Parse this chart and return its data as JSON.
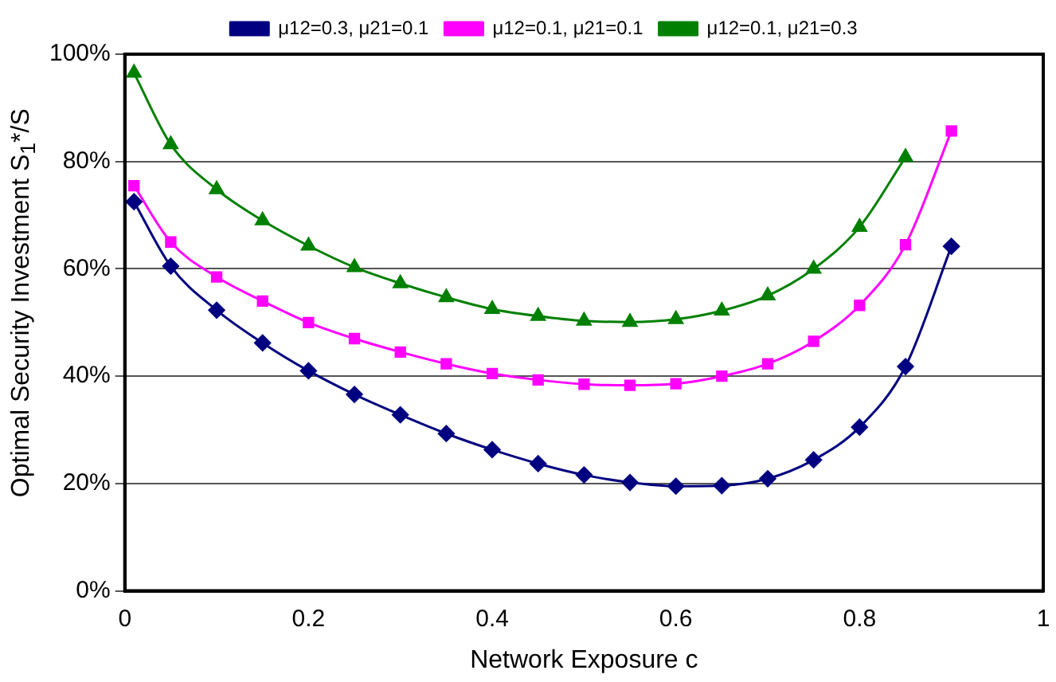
{
  "chart_data": {
    "type": "line",
    "xlabel": "Network Exposure c",
    "ylabel": "Optimal Security Investment S$_{1}$*/S",
    "xlim": [
      0,
      1
    ],
    "xticks": [
      0,
      0.2,
      0.4,
      0.6,
      0.8,
      1
    ],
    "ylim": [
      0,
      100
    ],
    "yticks": [
      {
        "value": 0,
        "label": "0%"
      },
      {
        "value": 20,
        "label": "20%"
      },
      {
        "value": 40,
        "label": "40%"
      },
      {
        "value": 60,
        "label": "60%"
      },
      {
        "value": 80,
        "label": "80%"
      },
      {
        "value": 100,
        "label": "100%"
      }
    ],
    "grid": "y",
    "legend": "top",
    "line_style": "solid",
    "series": [
      {
        "name": "μ12=0.3, μ21=0.1",
        "color": "#000080",
        "marker": "diamond",
        "x": [
          0.01,
          0.05,
          0.1,
          0.15,
          0.2,
          0.25,
          0.3,
          0.35,
          0.4,
          0.45,
          0.5,
          0.55,
          0.6,
          0.65,
          0.7,
          0.75,
          0.8,
          0.85,
          0.9
        ],
        "values": [
          72.5,
          60.5,
          52.3,
          46.2,
          41,
          36.6,
          32.8,
          29.3,
          26.3,
          23.7,
          21.6,
          20.2,
          19.5,
          19.6,
          20.9,
          24.4,
          30.5,
          41.8,
          64.2
        ]
      },
      {
        "name": "μ12=0.1, μ21=0.1",
        "color": "#ff00ff",
        "marker": "square",
        "x": [
          0.01,
          0.05,
          0.1,
          0.15,
          0.2,
          0.25,
          0.3,
          0.35,
          0.4,
          0.45,
          0.5,
          0.55,
          0.6,
          0.65,
          0.7,
          0.75,
          0.8,
          0.85,
          0.9
        ],
        "values": [
          75.5,
          65,
          58.5,
          54,
          50,
          47,
          44.5,
          42.3,
          40.5,
          39.3,
          38.5,
          38.3,
          38.6,
          40,
          42.3,
          46.5,
          53.2,
          64.5,
          85.7
        ]
      },
      {
        "name": "μ12=0.1, μ21=0.3",
        "color": "#008000",
        "marker": "triangle",
        "x": [
          0.01,
          0.05,
          0.1,
          0.15,
          0.2,
          0.25,
          0.3,
          0.35,
          0.4,
          0.45,
          0.5,
          0.55,
          0.6,
          0.65,
          0.7,
          0.75,
          0.8,
          0.85
        ],
        "values": [
          96.5,
          83.2,
          74.8,
          69,
          64.3,
          60.3,
          57.3,
          54.7,
          52.5,
          51.2,
          50.3,
          50.1,
          50.6,
          52.2,
          55,
          60,
          67.8,
          80.8
        ]
      }
    ]
  }
}
